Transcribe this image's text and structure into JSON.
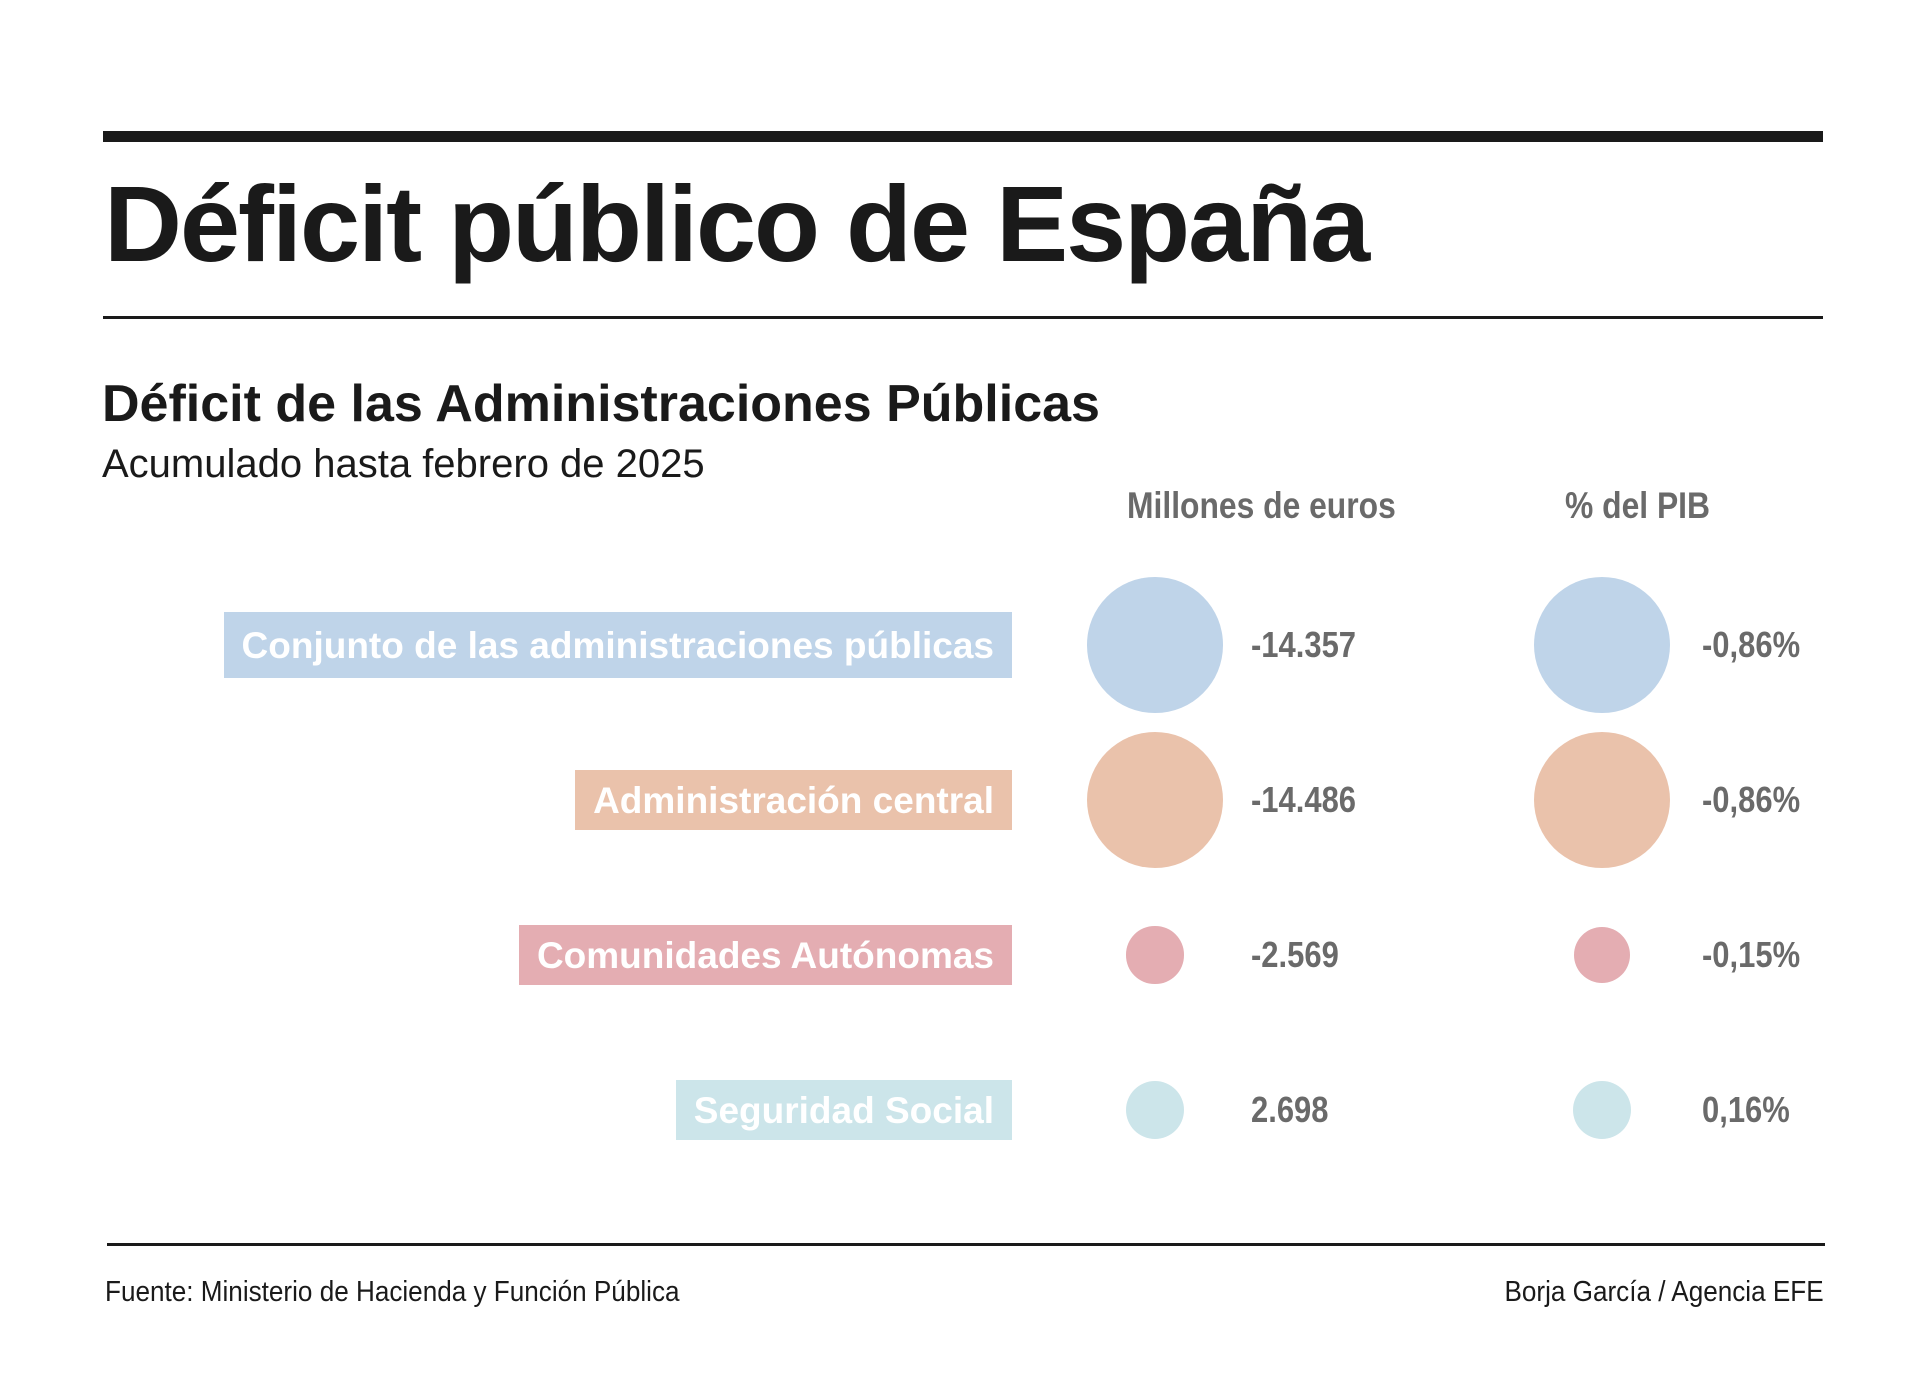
{
  "header": {
    "title": "Déficit público de España"
  },
  "chart_data": {
    "type": "bubble",
    "title": "Déficit de las Administraciones Públicas",
    "subtitle": "Acumulado hasta febrero de 2025",
    "columns": [
      "Millones de euros",
      "% del PIB"
    ],
    "rows": [
      {
        "label": "Conjunto de las administraciones públicas",
        "color": "#bfd4e9",
        "millones": -14357,
        "millones_label": "-14.357",
        "pib": -0.86,
        "pib_label": "-0,86%"
      },
      {
        "label": "Administración central",
        "color": "#eac2ab",
        "millones": -14486,
        "millones_label": "-14.486",
        "pib": -0.86,
        "pib_label": "-0,86%"
      },
      {
        "label": "Comunidades Autónomas",
        "color": "#e4adb2",
        "millones": -2569,
        "millones_label": "-2.569",
        "pib": -0.15,
        "pib_label": "-0,15%"
      },
      {
        "label": "Seguridad Social",
        "color": "#cce5ea",
        "millones": 2698,
        "millones_label": "2.698",
        "pib": 0.16,
        "pib_label": "0,16%"
      }
    ]
  },
  "footer": {
    "source": "Fuente: Ministerio de Hacienda y Función Pública",
    "credit": "Borja García / Agencia EFE"
  }
}
